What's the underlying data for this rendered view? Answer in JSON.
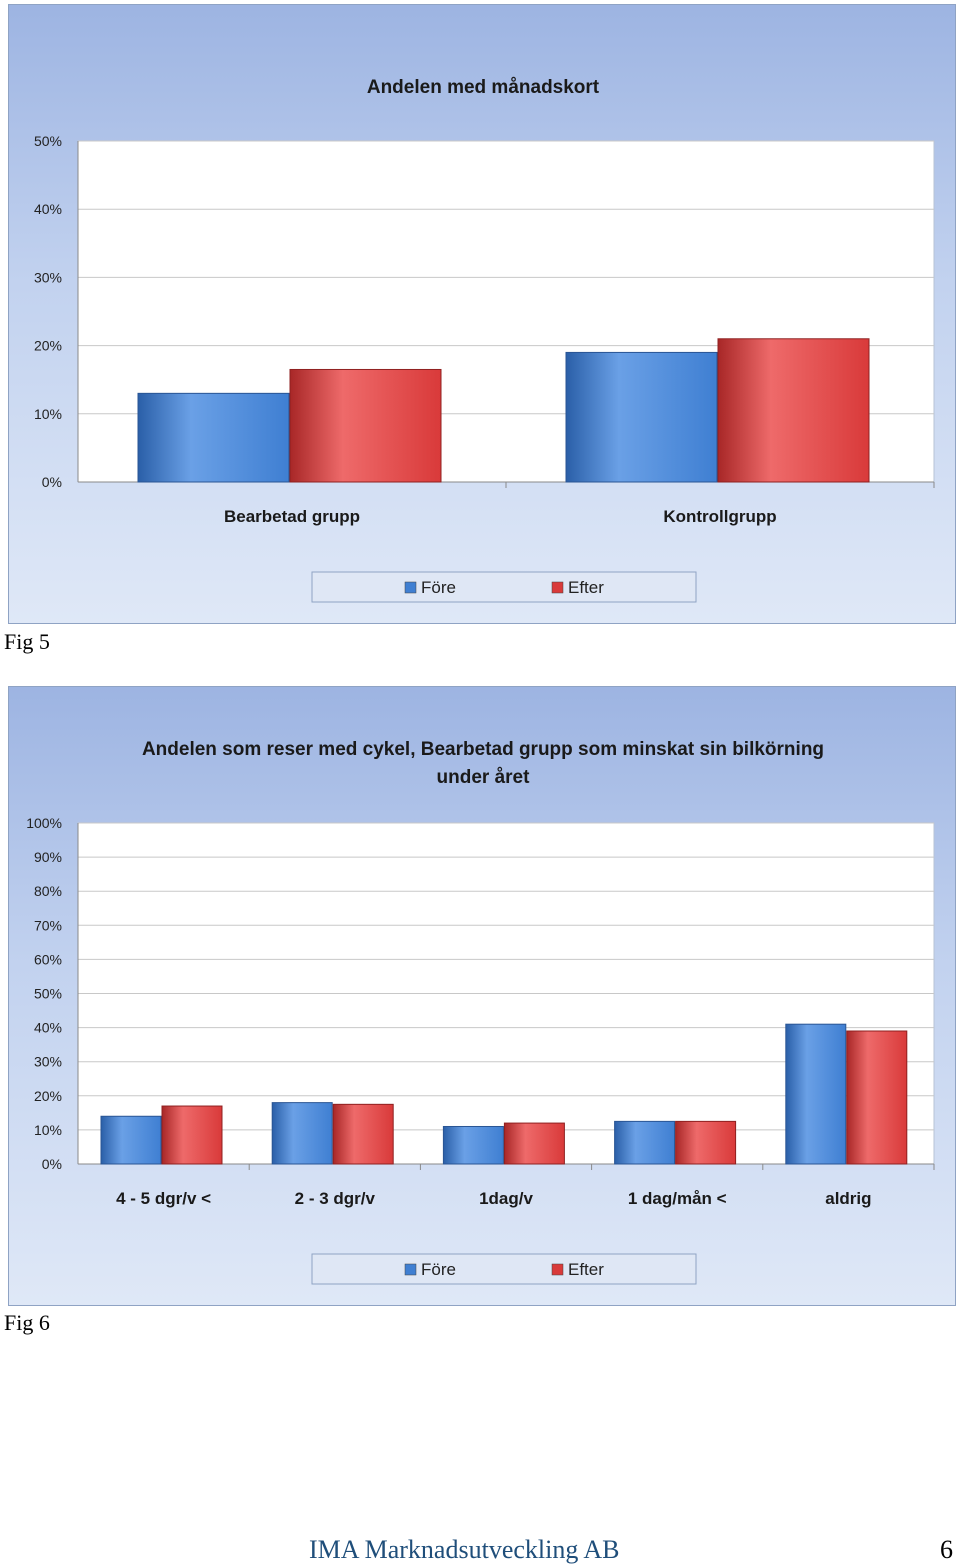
{
  "figures": [
    {
      "caption": "Fig 5"
    },
    {
      "caption": "Fig 6"
    }
  ],
  "footer": {
    "company": "IMA Marknadsutveckling AB",
    "page_number": "6"
  },
  "colors": {
    "fore": "#3f7fd2",
    "efter": "#d93a3a"
  },
  "chart_data": [
    {
      "type": "bar",
      "title": [
        "Andelen med månadskort"
      ],
      "categories": [
        "Bearbetad grupp",
        "Kontrollgrupp"
      ],
      "series": [
        {
          "name": "Före",
          "values": [
            13,
            19
          ]
        },
        {
          "name": "Efter",
          "values": [
            16.5,
            21
          ]
        }
      ],
      "ylim": [
        0,
        50
      ],
      "yticks": [
        "0%",
        "10%",
        "20%",
        "30%",
        "40%",
        "50%"
      ],
      "ytick_values": [
        0,
        10,
        20,
        30,
        40,
        50
      ],
      "legend": [
        "Före",
        "Efter"
      ],
      "legend_position": "bottom",
      "grid": true
    },
    {
      "type": "bar",
      "title": [
        "Andelen som reser  med cykel, Bearbetad grupp som minskat sin bilkörning",
        "under året"
      ],
      "categories": [
        "4 - 5 dgr/v <",
        "2 - 3 dgr/v",
        "1dag/v",
        "1 dag/mån <",
        "aldrig"
      ],
      "series": [
        {
          "name": "Före",
          "values": [
            14,
            18,
            11,
            12.5,
            41
          ]
        },
        {
          "name": "Efter",
          "values": [
            17,
            17.5,
            12,
            12.5,
            39
          ]
        }
      ],
      "ylim": [
        0,
        100
      ],
      "yticks": [
        "0%",
        "10%",
        "20%",
        "30%",
        "40%",
        "50%",
        "60%",
        "70%",
        "80%",
        "90%",
        "100%"
      ],
      "ytick_values": [
        0,
        10,
        20,
        30,
        40,
        50,
        60,
        70,
        80,
        90,
        100
      ],
      "legend": [
        "Före",
        "Efter"
      ],
      "legend_position": "bottom",
      "grid": true
    }
  ]
}
